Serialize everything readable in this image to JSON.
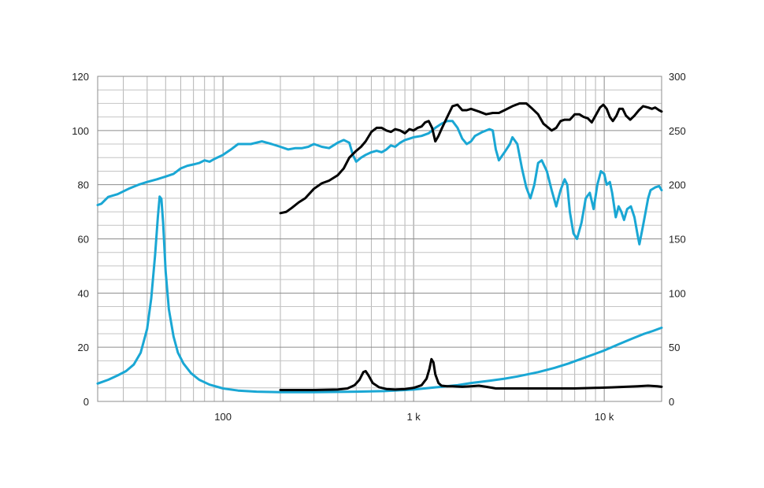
{
  "chart_data": {
    "type": "line",
    "title": "",
    "xlabel": "",
    "ylabel": "",
    "x_scale": "log",
    "xlim": [
      22,
      20000
    ],
    "ylim_left": [
      0,
      120
    ],
    "ylim_right": [
      0,
      300
    ],
    "grid": true,
    "x_ticks": [
      {
        "value": 100,
        "label": "100"
      },
      {
        "value": 1000,
        "label": "1 k"
      },
      {
        "value": 10000,
        "label": "10 k"
      }
    ],
    "y_ticks_left": [
      {
        "value": 0,
        "label": "0"
      },
      {
        "value": 20,
        "label": "20"
      },
      {
        "value": 40,
        "label": "40"
      },
      {
        "value": 60,
        "label": "60"
      },
      {
        "value": 80,
        "label": "80"
      },
      {
        "value": 100,
        "label": "100"
      },
      {
        "value": 120,
        "label": "120"
      }
    ],
    "y_ticks_right": [
      {
        "value": 0,
        "label": "0"
      },
      {
        "value": 50,
        "label": "50"
      },
      {
        "value": 100,
        "label": "100"
      },
      {
        "value": 150,
        "label": "150"
      },
      {
        "value": 200,
        "label": "200"
      },
      {
        "value": 250,
        "label": "250"
      },
      {
        "value": 300,
        "label": "300"
      }
    ],
    "series": [
      {
        "color": "#1aa7d4",
        "axis": "left",
        "points": [
          [
            22,
            72.5
          ],
          [
            23,
            73
          ],
          [
            25,
            75.5
          ],
          [
            28,
            76.5
          ],
          [
            32,
            78.5
          ],
          [
            36,
            80
          ],
          [
            40,
            81
          ],
          [
            45,
            82
          ],
          [
            50,
            83
          ],
          [
            55,
            84
          ],
          [
            60,
            86
          ],
          [
            65,
            87
          ],
          [
            70,
            87.5
          ],
          [
            75,
            88
          ],
          [
            80,
            89
          ],
          [
            85,
            88.5
          ],
          [
            90,
            89.5
          ],
          [
            100,
            91
          ],
          [
            110,
            93
          ],
          [
            120,
            95
          ],
          [
            130,
            95
          ],
          [
            140,
            95
          ],
          [
            160,
            96
          ],
          [
            180,
            95
          ],
          [
            200,
            94
          ],
          [
            220,
            93
          ],
          [
            240,
            93.5
          ],
          [
            260,
            93.5
          ],
          [
            280,
            94
          ],
          [
            300,
            95
          ],
          [
            330,
            94
          ],
          [
            360,
            93.5
          ],
          [
            400,
            95.5
          ],
          [
            430,
            96.5
          ],
          [
            460,
            95.5
          ],
          [
            480,
            91
          ],
          [
            500,
            88.5
          ],
          [
            530,
            90
          ],
          [
            560,
            91
          ],
          [
            600,
            92
          ],
          [
            640,
            92.5
          ],
          [
            680,
            92
          ],
          [
            720,
            93
          ],
          [
            760,
            94.5
          ],
          [
            800,
            94
          ],
          [
            850,
            95.5
          ],
          [
            900,
            96.5
          ],
          [
            950,
            97
          ],
          [
            1000,
            97.5
          ],
          [
            1100,
            98
          ],
          [
            1200,
            99
          ],
          [
            1300,
            101
          ],
          [
            1400,
            102.5
          ],
          [
            1500,
            103.5
          ],
          [
            1600,
            103.5
          ],
          [
            1700,
            101
          ],
          [
            1800,
            97
          ],
          [
            1900,
            95
          ],
          [
            2000,
            96
          ],
          [
            2100,
            98
          ],
          [
            2300,
            99.5
          ],
          [
            2500,
            100.5
          ],
          [
            2600,
            100
          ],
          [
            2700,
            93
          ],
          [
            2800,
            89
          ],
          [
            3000,
            92
          ],
          [
            3200,
            95
          ],
          [
            3300,
            97.5
          ],
          [
            3500,
            95
          ],
          [
            3700,
            86
          ],
          [
            3900,
            79
          ],
          [
            4100,
            75
          ],
          [
            4300,
            80
          ],
          [
            4500,
            88
          ],
          [
            4700,
            89
          ],
          [
            5000,
            85
          ],
          [
            5300,
            78
          ],
          [
            5600,
            72
          ],
          [
            5900,
            78
          ],
          [
            6200,
            82
          ],
          [
            6400,
            80
          ],
          [
            6600,
            70
          ],
          [
            6900,
            62
          ],
          [
            7200,
            60
          ],
          [
            7600,
            66
          ],
          [
            8000,
            75
          ],
          [
            8400,
            77
          ],
          [
            8800,
            71
          ],
          [
            9200,
            80
          ],
          [
            9600,
            85
          ],
          [
            10000,
            84
          ],
          [
            10300,
            80
          ],
          [
            10700,
            81
          ],
          [
            11000,
            77
          ],
          [
            11500,
            68
          ],
          [
            11900,
            72
          ],
          [
            12300,
            70
          ],
          [
            12700,
            67
          ],
          [
            13200,
            71
          ],
          [
            13800,
            72
          ],
          [
            14400,
            68
          ],
          [
            15000,
            61
          ],
          [
            15300,
            58
          ],
          [
            16000,
            65
          ],
          [
            17000,
            75
          ],
          [
            17500,
            78
          ],
          [
            18500,
            79
          ],
          [
            19400,
            79.5
          ],
          [
            20000,
            78
          ]
        ]
      },
      {
        "color": "#000000",
        "axis": "left",
        "points": [
          [
            200,
            69.5
          ],
          [
            215,
            70
          ],
          [
            230,
            71.5
          ],
          [
            250,
            73.5
          ],
          [
            270,
            75
          ],
          [
            300,
            78.5
          ],
          [
            330,
            80.5
          ],
          [
            360,
            81.5
          ],
          [
            400,
            83.5
          ],
          [
            430,
            86
          ],
          [
            460,
            90
          ],
          [
            500,
            92.5
          ],
          [
            530,
            94
          ],
          [
            560,
            96
          ],
          [
            600,
            99.5
          ],
          [
            640,
            101
          ],
          [
            680,
            101
          ],
          [
            720,
            100
          ],
          [
            760,
            99.5
          ],
          [
            800,
            100.5
          ],
          [
            850,
            100
          ],
          [
            900,
            99
          ],
          [
            950,
            100.5
          ],
          [
            1000,
            100
          ],
          [
            1050,
            101
          ],
          [
            1100,
            101.5
          ],
          [
            1150,
            103
          ],
          [
            1200,
            103.5
          ],
          [
            1250,
            101
          ],
          [
            1300,
            96
          ],
          [
            1350,
            98
          ],
          [
            1400,
            100.5
          ],
          [
            1500,
            105
          ],
          [
            1600,
            109
          ],
          [
            1700,
            109.5
          ],
          [
            1800,
            107.5
          ],
          [
            1900,
            107.5
          ],
          [
            2000,
            108
          ],
          [
            2200,
            107
          ],
          [
            2400,
            106
          ],
          [
            2600,
            106.5
          ],
          [
            2800,
            106.5
          ],
          [
            3000,
            107.5
          ],
          [
            3300,
            109
          ],
          [
            3600,
            110
          ],
          [
            3900,
            110
          ],
          [
            4200,
            108
          ],
          [
            4500,
            106
          ],
          [
            4800,
            102.5
          ],
          [
            5100,
            101
          ],
          [
            5300,
            100
          ],
          [
            5600,
            101
          ],
          [
            5900,
            103.5
          ],
          [
            6200,
            104
          ],
          [
            6600,
            104
          ],
          [
            7000,
            106
          ],
          [
            7400,
            106
          ],
          [
            7800,
            105
          ],
          [
            8200,
            104.5
          ],
          [
            8600,
            103
          ],
          [
            9000,
            105.5
          ],
          [
            9500,
            108.5
          ],
          [
            9900,
            109.5
          ],
          [
            10300,
            108
          ],
          [
            10700,
            105
          ],
          [
            11100,
            103.5
          ],
          [
            11600,
            105.5
          ],
          [
            12000,
            108
          ],
          [
            12500,
            108
          ],
          [
            13000,
            105.5
          ],
          [
            13700,
            104
          ],
          [
            14400,
            105.5
          ],
          [
            15200,
            107.5
          ],
          [
            16000,
            109
          ],
          [
            17000,
            108.5
          ],
          [
            17800,
            108
          ],
          [
            18500,
            108.5
          ],
          [
            19400,
            107.5
          ],
          [
            20000,
            107
          ]
        ]
      },
      {
        "color": "#1aa7d4",
        "axis": "right",
        "points": [
          [
            22,
            16.5
          ],
          [
            25,
            20
          ],
          [
            28,
            24
          ],
          [
            31,
            28
          ],
          [
            34,
            34
          ],
          [
            37,
            45
          ],
          [
            40,
            67
          ],
          [
            42,
            95
          ],
          [
            44,
            135
          ],
          [
            45.5,
            170
          ],
          [
            46.5,
            189
          ],
          [
            47.5,
            187
          ],
          [
            48.5,
            165
          ],
          [
            50,
            120
          ],
          [
            52,
            85
          ],
          [
            55,
            60
          ],
          [
            58,
            45
          ],
          [
            62,
            35
          ],
          [
            68,
            26
          ],
          [
            75,
            20
          ],
          [
            85,
            15.5
          ],
          [
            100,
            12
          ],
          [
            120,
            10
          ],
          [
            150,
            9
          ],
          [
            200,
            8.5
          ],
          [
            300,
            8.5
          ],
          [
            500,
            9
          ],
          [
            700,
            9.5
          ],
          [
            1000,
            11
          ],
          [
            1300,
            13
          ],
          [
            1700,
            15
          ],
          [
            2000,
            17
          ],
          [
            2500,
            19
          ],
          [
            3000,
            21
          ],
          [
            3500,
            23
          ],
          [
            4500,
            27
          ],
          [
            5500,
            31
          ],
          [
            6500,
            35
          ],
          [
            7500,
            39
          ],
          [
            9000,
            44
          ],
          [
            10000,
            47
          ],
          [
            12000,
            53
          ],
          [
            14000,
            58
          ],
          [
            16000,
            62
          ],
          [
            18000,
            65
          ],
          [
            20000,
            68
          ]
        ]
      },
      {
        "color": "#000000",
        "axis": "right",
        "points": [
          [
            200,
            10.5
          ],
          [
            300,
            10.5
          ],
          [
            400,
            11
          ],
          [
            450,
            12
          ],
          [
            490,
            15
          ],
          [
            520,
            20
          ],
          [
            545,
            27
          ],
          [
            560,
            28
          ],
          [
            580,
            24
          ],
          [
            610,
            17
          ],
          [
            660,
            13
          ],
          [
            720,
            11.5
          ],
          [
            800,
            11
          ],
          [
            900,
            11.5
          ],
          [
            1000,
            12.5
          ],
          [
            1100,
            15
          ],
          [
            1170,
            21
          ],
          [
            1210,
            30
          ],
          [
            1240,
            39
          ],
          [
            1270,
            36
          ],
          [
            1300,
            25
          ],
          [
            1350,
            17
          ],
          [
            1400,
            14.5
          ],
          [
            1500,
            14
          ],
          [
            1600,
            14
          ],
          [
            1800,
            13.5
          ],
          [
            2000,
            14
          ],
          [
            2200,
            14.5
          ],
          [
            2400,
            13.5
          ],
          [
            2700,
            12
          ],
          [
            3000,
            12
          ],
          [
            4000,
            12
          ],
          [
            5000,
            12
          ],
          [
            7000,
            12
          ],
          [
            9000,
            12.5
          ],
          [
            11000,
            13
          ],
          [
            13000,
            13.5
          ],
          [
            15000,
            14
          ],
          [
            17000,
            14.5
          ],
          [
            19000,
            14
          ],
          [
            20000,
            13.5
          ]
        ]
      }
    ]
  }
}
